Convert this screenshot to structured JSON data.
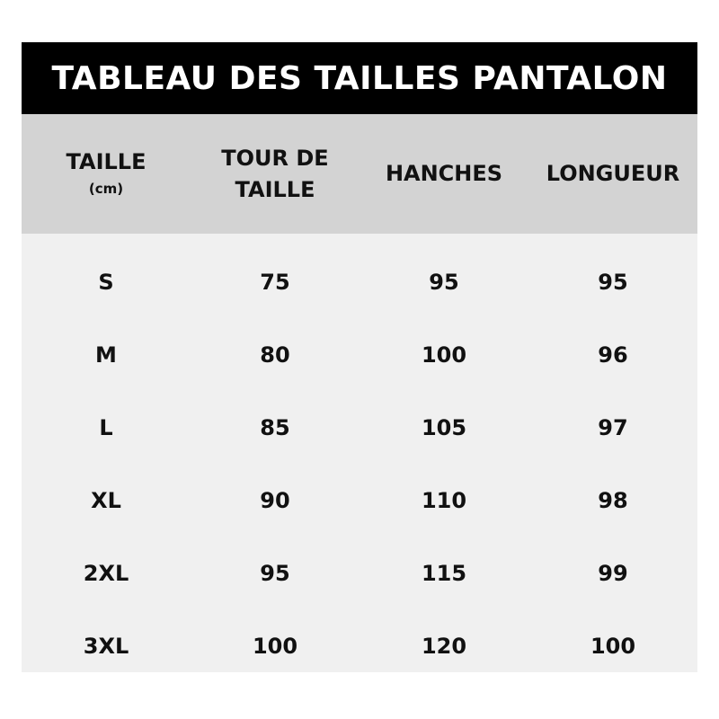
{
  "title": "TABLEAU DES TAILLES PANTALON",
  "headers": [
    {
      "label": "TAILLE",
      "sub": "(cm)"
    },
    {
      "label": "TOUR DE TAILLE"
    },
    {
      "label": "HANCHES"
    },
    {
      "label": "LONGUEUR"
    }
  ],
  "rows": [
    [
      "S",
      "75",
      "95",
      "95"
    ],
    [
      "M",
      "80",
      "100",
      "96"
    ],
    [
      "L",
      "85",
      "105",
      "97"
    ],
    [
      "XL",
      "90",
      "110",
      "98"
    ],
    [
      "2XL",
      "95",
      "115",
      "99"
    ],
    [
      "3XL",
      "100",
      "120",
      "100"
    ]
  ],
  "colors": {
    "title_bg": "#000000",
    "header_bg": "#d3d3d3",
    "body_bg": "#f0f0f0"
  }
}
